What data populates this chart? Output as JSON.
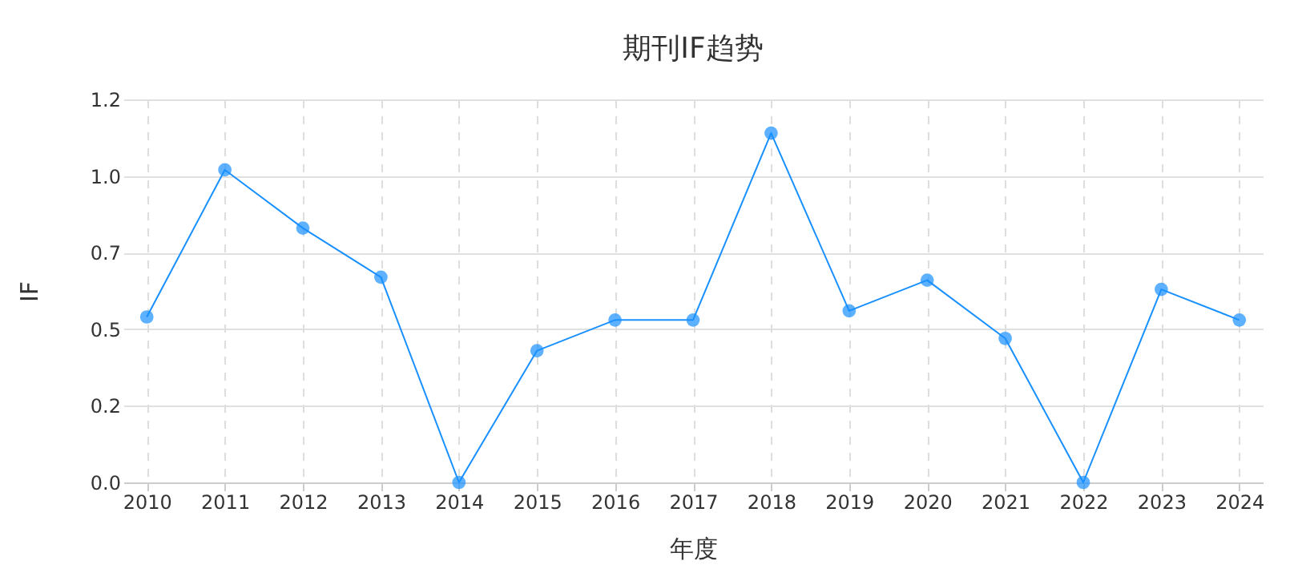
{
  "chart_data": {
    "type": "line",
    "title": "期刊IF趋势",
    "xlabel": "年度",
    "ylabel": "IF",
    "categories": [
      "2010",
      "2011",
      "2012",
      "2013",
      "2014",
      "2015",
      "2016",
      "2017",
      "2018",
      "2019",
      "2020",
      "2021",
      "2022",
      "2023",
      "2024"
    ],
    "series": [
      {
        "color": "#1890ff",
        "values": [
          0.54,
          1.02,
          0.83,
          0.67,
          0,
          0.43,
          0.53,
          0.53,
          1.14,
          0.56,
          0.66,
          0.47,
          0,
          0.63,
          0.53
        ]
      }
    ],
    "ylim": [
      0,
      1.25
    ],
    "yticks": [
      {
        "value": 0,
        "label": "0.0"
      },
      {
        "value": 0.25,
        "label": "0.2"
      },
      {
        "value": 0.5,
        "label": "0.5"
      },
      {
        "value": 0.75,
        "label": "0.7"
      },
      {
        "value": 1,
        "label": "1.0"
      },
      {
        "value": 1.25,
        "label": "1.2"
      }
    ],
    "grid": true,
    "marker": "circle",
    "line_style": "solid"
  }
}
